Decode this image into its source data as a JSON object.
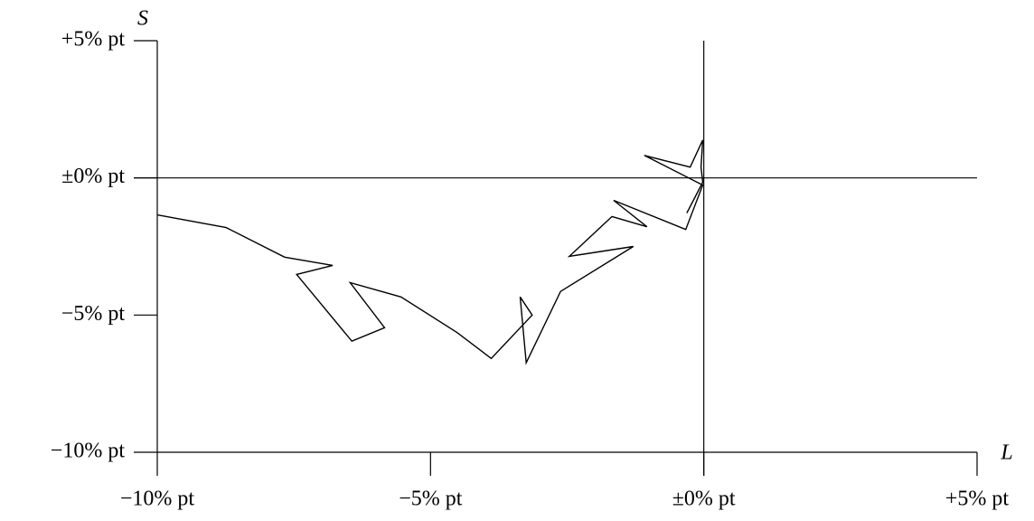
{
  "chart_data": {
    "type": "line",
    "xlabel": "L",
    "ylabel": "S",
    "x": [
      -10,
      -8.74,
      -7.67,
      -6.79,
      -7.45,
      -6.44,
      -5.84,
      -6.47,
      -5.54,
      -4.52,
      -3.89,
      -3.14,
      -3.36,
      -3.25,
      -2.62,
      -1.29,
      -2.46,
      -1.68,
      -1.04,
      -1.65,
      -0.33,
      -0.02,
      -1.09,
      -0.25,
      -0.02,
      -0.05,
      -0.02,
      -0.31
    ],
    "values": [
      -1.35,
      -1.81,
      -2.89,
      -3.19,
      -3.52,
      -5.95,
      -5.46,
      -3.82,
      -4.34,
      -5.63,
      -6.58,
      -5.0,
      -4.34,
      -6.74,
      -4.14,
      -2.5,
      -2.86,
      -1.41,
      -1.78,
      -0.82,
      -1.88,
      -0.26,
      0.82,
      0.39,
      1.38,
      0.39,
      -0.16,
      -1.28
    ],
    "color": "#000000",
    "xlim": [
      -10,
      5
    ],
    "ylim": [
      -10,
      5
    ],
    "xticks": [
      {
        "value": -10,
        "label": "−10% pt"
      },
      {
        "value": -5,
        "label": "−5% pt"
      },
      {
        "value": 0,
        "label": "±0% pt"
      },
      {
        "value": 5,
        "label": "+5% pt"
      }
    ],
    "yticks": [
      {
        "value": -10,
        "label": "−10% pt"
      },
      {
        "value": -5,
        "label": "−5% pt"
      },
      {
        "value": 0,
        "label": "±0% pt"
      },
      {
        "value": 5,
        "label": "+5% pt"
      }
    ],
    "origin_lines": true
  }
}
